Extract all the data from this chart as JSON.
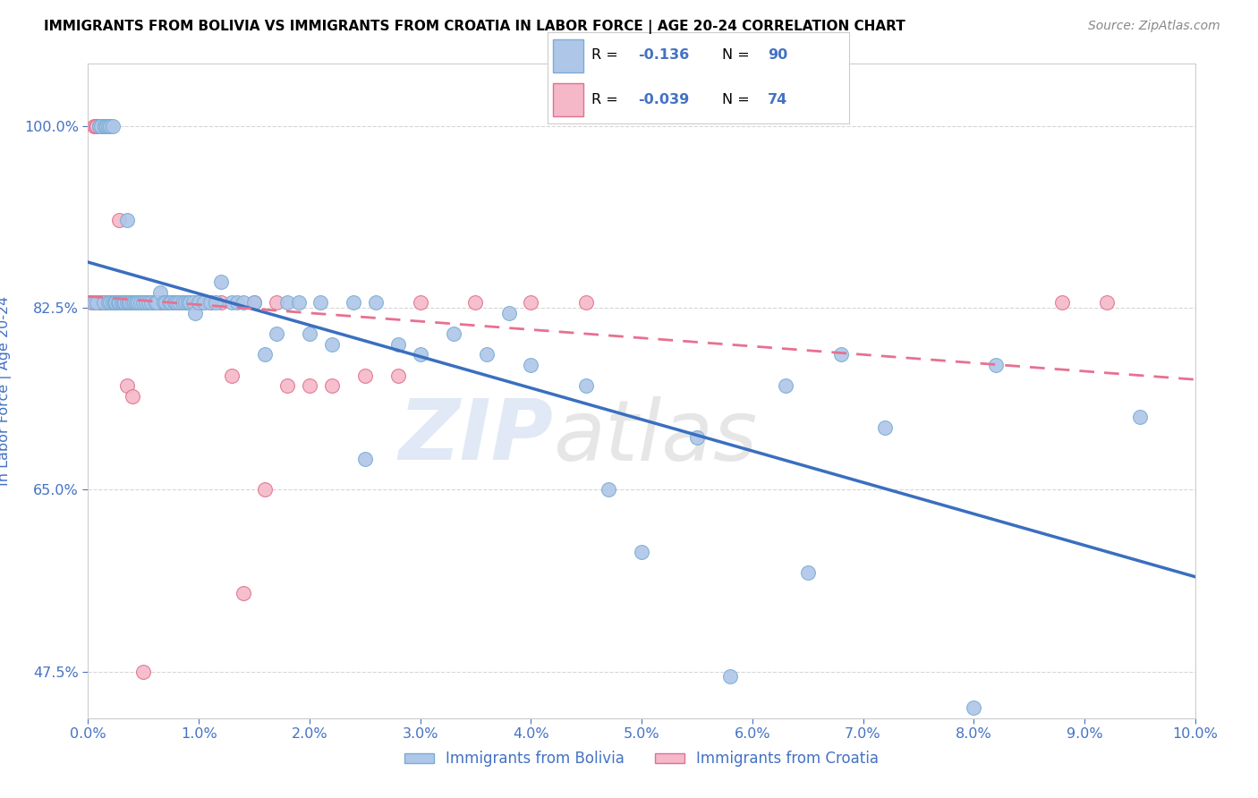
{
  "title": "IMMIGRANTS FROM BOLIVIA VS IMMIGRANTS FROM CROATIA IN LABOR FORCE | AGE 20-24 CORRELATION CHART",
  "source": "Source: ZipAtlas.com",
  "ylabel": "In Labor Force | Age 20-24",
  "xmin": 0.0,
  "xmax": 10.0,
  "ymin": 43.0,
  "ymax": 106.0,
  "bolivia_color": "#aec6e8",
  "croatia_color": "#f5b8c8",
  "bolivia_edge": "#7aadd4",
  "croatia_edge": "#e07090",
  "trendline_bolivia_color": "#3a6fbf",
  "trendline_croatia_color": "#e87090",
  "bolivia_R": -0.136,
  "bolivia_N": 90,
  "croatia_R": -0.039,
  "croatia_N": 74,
  "legend_label_bolivia": "Immigrants from Bolivia",
  "legend_label_croatia": "Immigrants from Croatia",
  "bolivia_x": [
    0.05,
    0.08,
    0.1,
    0.12,
    0.14,
    0.15,
    0.15,
    0.17,
    0.18,
    0.18,
    0.2,
    0.2,
    0.22,
    0.22,
    0.24,
    0.25,
    0.25,
    0.27,
    0.28,
    0.28,
    0.3,
    0.3,
    0.32,
    0.33,
    0.35,
    0.35,
    0.37,
    0.38,
    0.4,
    0.42,
    0.43,
    0.45,
    0.47,
    0.5,
    0.52,
    0.55,
    0.57,
    0.6,
    0.62,
    0.65,
    0.68,
    0.7,
    0.73,
    0.75,
    0.78,
    0.8,
    0.82,
    0.85,
    0.88,
    0.9,
    0.92,
    0.95,
    0.97,
    1.0,
    1.05,
    1.1,
    1.15,
    1.2,
    1.3,
    1.35,
    1.4,
    1.5,
    1.6,
    1.7,
    1.8,
    1.9,
    2.0,
    2.1,
    2.2,
    2.4,
    2.6,
    2.8,
    3.0,
    3.3,
    3.6,
    4.0,
    4.5,
    5.0,
    5.5,
    6.3,
    6.5,
    7.2,
    8.0,
    8.2,
    9.5,
    4.7,
    5.8,
    3.8,
    2.5,
    6.8
  ],
  "bolivia_y": [
    83.0,
    83.0,
    100.0,
    100.0,
    83.0,
    100.0,
    100.0,
    100.0,
    83.0,
    100.0,
    83.0,
    100.0,
    83.0,
    100.0,
    83.0,
    83.0,
    83.0,
    83.0,
    83.0,
    83.0,
    83.0,
    83.0,
    83.0,
    83.0,
    83.0,
    91.0,
    83.0,
    83.0,
    83.0,
    83.0,
    83.0,
    83.0,
    83.0,
    83.0,
    83.0,
    83.0,
    83.0,
    83.0,
    83.0,
    84.0,
    83.0,
    83.0,
    83.0,
    83.0,
    83.0,
    83.0,
    83.0,
    83.0,
    83.0,
    83.0,
    83.0,
    83.0,
    82.0,
    83.0,
    83.0,
    83.0,
    83.0,
    85.0,
    83.0,
    83.0,
    83.0,
    83.0,
    78.0,
    80.0,
    83.0,
    83.0,
    80.0,
    83.0,
    79.0,
    83.0,
    83.0,
    79.0,
    78.0,
    80.0,
    78.0,
    77.0,
    75.0,
    59.0,
    70.0,
    75.0,
    57.0,
    71.0,
    44.0,
    77.0,
    72.0,
    65.0,
    47.0,
    82.0,
    68.0,
    78.0
  ],
  "croatia_x": [
    0.03,
    0.05,
    0.07,
    0.08,
    0.1,
    0.1,
    0.12,
    0.13,
    0.15,
    0.15,
    0.17,
    0.18,
    0.18,
    0.2,
    0.2,
    0.22,
    0.23,
    0.25,
    0.25,
    0.27,
    0.28,
    0.3,
    0.3,
    0.32,
    0.35,
    0.35,
    0.37,
    0.38,
    0.4,
    0.4,
    0.42,
    0.45,
    0.47,
    0.48,
    0.5,
    0.52,
    0.55,
    0.57,
    0.6,
    0.62,
    0.65,
    0.68,
    0.7,
    0.72,
    0.75,
    0.78,
    0.8,
    0.85,
    0.9,
    0.95,
    1.0,
    1.05,
    1.1,
    1.2,
    1.3,
    1.4,
    1.5,
    1.6,
    1.8,
    2.0,
    2.2,
    2.5,
    2.8,
    3.0,
    3.5,
    4.0,
    4.5,
    0.28,
    0.35,
    0.4,
    1.7,
    8.8,
    9.2,
    0.5
  ],
  "croatia_y": [
    83.0,
    100.0,
    100.0,
    100.0,
    100.0,
    83.0,
    100.0,
    83.0,
    100.0,
    83.0,
    83.0,
    83.0,
    100.0,
    83.0,
    83.0,
    83.0,
    83.0,
    83.0,
    83.0,
    83.0,
    83.0,
    83.0,
    83.0,
    83.0,
    83.0,
    83.0,
    83.0,
    83.0,
    83.0,
    83.0,
    83.0,
    83.0,
    83.0,
    83.0,
    83.0,
    83.0,
    83.0,
    83.0,
    83.0,
    83.0,
    83.0,
    83.0,
    83.0,
    83.0,
    83.0,
    83.0,
    83.0,
    83.0,
    83.0,
    83.0,
    83.0,
    83.0,
    83.0,
    83.0,
    76.0,
    55.0,
    83.0,
    65.0,
    75.0,
    75.0,
    75.0,
    76.0,
    76.0,
    83.0,
    83.0,
    83.0,
    83.0,
    91.0,
    75.0,
    74.0,
    83.0,
    83.0,
    83.0,
    47.5
  ],
  "watermark_zip": "ZIP",
  "watermark_atlas": "atlas",
  "bg_color": "#ffffff",
  "grid_color": "#cccccc",
  "tick_color": "#4472c4",
  "legend_R_color": "#4472c4",
  "legend_N_color": "#4472c4"
}
